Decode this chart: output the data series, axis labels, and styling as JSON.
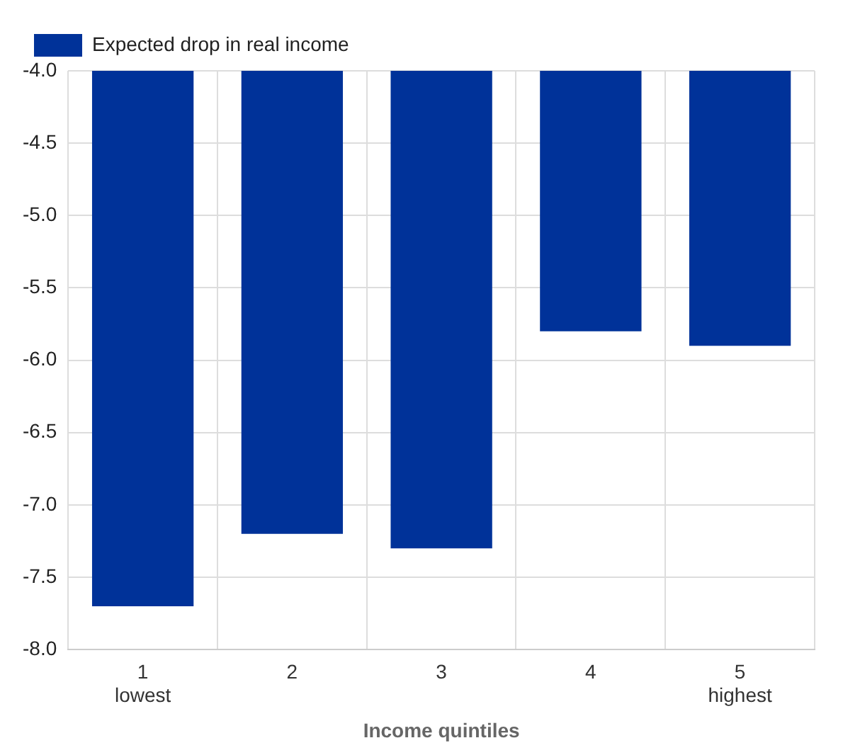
{
  "chart_data": {
    "type": "bar",
    "xlabel": "Income quintiles",
    "categories": [
      "1\nlowest",
      "2",
      "3",
      "4",
      "5\nhighest"
    ],
    "series": [
      {
        "name": "Expected drop in real income",
        "color": "#003299",
        "values": [
          -7.7,
          -7.2,
          -7.3,
          -5.8,
          -5.9
        ]
      }
    ],
    "ylim": [
      -8,
      -4
    ],
    "yticks": [
      {
        "value": -8,
        "label": "-8.0"
      },
      -7.5,
      {
        "value": -7,
        "label": "-7.0"
      },
      -6.5,
      {
        "value": -6,
        "label": "-6.0"
      },
      -5.5,
      {
        "value": -5,
        "label": "-5.0"
      },
      -4.5,
      {
        "value": -4,
        "label": "-4.0"
      }
    ],
    "grid": true,
    "legend": "top left"
  }
}
